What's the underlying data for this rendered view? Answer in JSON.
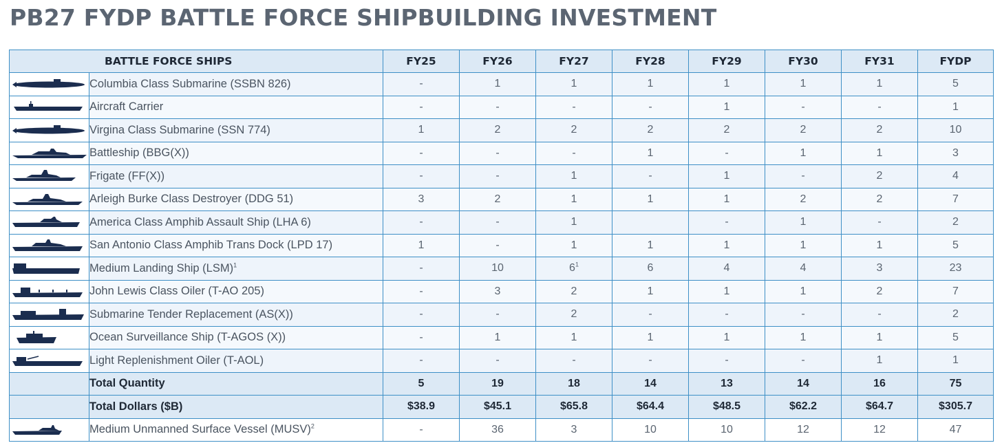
{
  "title": "PB27 FYDP BATTLE FORCE SHIPBUILDING INVESTMENT",
  "header": {
    "name": "BATTLE FORCE SHIPS",
    "years": [
      "FY25",
      "FY26",
      "FY27",
      "FY28",
      "FY29",
      "FY30",
      "FY31",
      "FYDP"
    ]
  },
  "rows": [
    {
      "name": "Columbia Class Submarine (SSBN 826)",
      "icon": "submarine-icon",
      "values": [
        "-",
        "1",
        "1",
        "1",
        "1",
        "1",
        "1",
        "5"
      ]
    },
    {
      "name": "Aircraft Carrier",
      "icon": "aircraft-carrier-icon",
      "values": [
        "-",
        "-",
        "-",
        "-",
        "1",
        "-",
        "-",
        "1"
      ]
    },
    {
      "name": "Virgina Class Submarine (SSN 774)",
      "icon": "submarine-icon",
      "values": [
        "1",
        "2",
        "2",
        "2",
        "2",
        "2",
        "2",
        "10"
      ]
    },
    {
      "name": "Battleship (BBG(X))",
      "icon": "battleship-icon",
      "values": [
        "-",
        "-",
        "-",
        "1",
        "-",
        "1",
        "1",
        "3"
      ]
    },
    {
      "name": "Frigate (FF(X))",
      "icon": "frigate-icon",
      "values": [
        "-",
        "-",
        "1",
        "-",
        "1",
        "-",
        "2",
        "4"
      ]
    },
    {
      "name": "Arleigh Burke Class Destroyer (DDG 51)",
      "icon": "destroyer-icon",
      "values": [
        "3",
        "2",
        "1",
        "1",
        "1",
        "2",
        "2",
        "7"
      ]
    },
    {
      "name": "America Class Amphib Assault Ship (LHA 6)",
      "icon": "amphib-assault-ship-icon",
      "values": [
        "-",
        "-",
        "1",
        "",
        "-",
        "1",
        "-",
        "2"
      ]
    },
    {
      "name": "San Antonio Class Amphib Trans Dock (LPD 17)",
      "icon": "amphib-dock-ship-icon",
      "values": [
        "1",
        "-",
        "1",
        "1",
        "1",
        "1",
        "1",
        "5"
      ]
    },
    {
      "name": "Medium Landing Ship (LSM)",
      "sup": "1",
      "icon": "landing-ship-icon",
      "values": [
        "-",
        "10",
        "6",
        "6",
        "4",
        "4",
        "3",
        "23"
      ],
      "fy27_sup": "1"
    },
    {
      "name": "John Lewis Class Oiler (T-AO 205)",
      "icon": "oiler-icon",
      "values": [
        "-",
        "3",
        "2",
        "1",
        "1",
        "1",
        "2",
        "7"
      ]
    },
    {
      "name": "Submarine Tender Replacement (AS(X))",
      "icon": "tender-icon",
      "values": [
        "-",
        "-",
        "2",
        "-",
        "-",
        "-",
        "-",
        "2"
      ]
    },
    {
      "name": "Ocean Surveillance Ship (T-AGOS (X))",
      "icon": "surveillance-ship-icon",
      "values": [
        "-",
        "1",
        "1",
        "1",
        "1",
        "1",
        "1",
        "5"
      ]
    },
    {
      "name": "Light Replenishment Oiler (T-AOL)",
      "icon": "replenishment-oiler-icon",
      "values": [
        "-",
        "-",
        "-",
        "-",
        "-",
        "-",
        "1",
        "1"
      ]
    }
  ],
  "totals": {
    "quantity": {
      "label": "Total Quantity",
      "values": [
        "5",
        "19",
        "18",
        "14",
        "13",
        "14",
        "16",
        "75"
      ]
    },
    "dollars": {
      "label": "Total Dollars ($B)",
      "values": [
        "$38.9",
        "$45.1",
        "$65.8",
        "$64.4",
        "$48.5",
        "$62.2",
        "$64.7",
        "$305.7"
      ]
    }
  },
  "musv": {
    "name": "Medium Unmanned Surface Vessel (MUSV)",
    "sup": "2",
    "icon": "unmanned-vessel-icon",
    "values": [
      "-",
      "36",
      "3",
      "10",
      "10",
      "12",
      "12",
      "47"
    ]
  },
  "colors": {
    "title": "#5b6572",
    "border": "#3d8fc6",
    "header_bg": "#dce9f5",
    "ship_silhouette": "#1b2d4f"
  }
}
